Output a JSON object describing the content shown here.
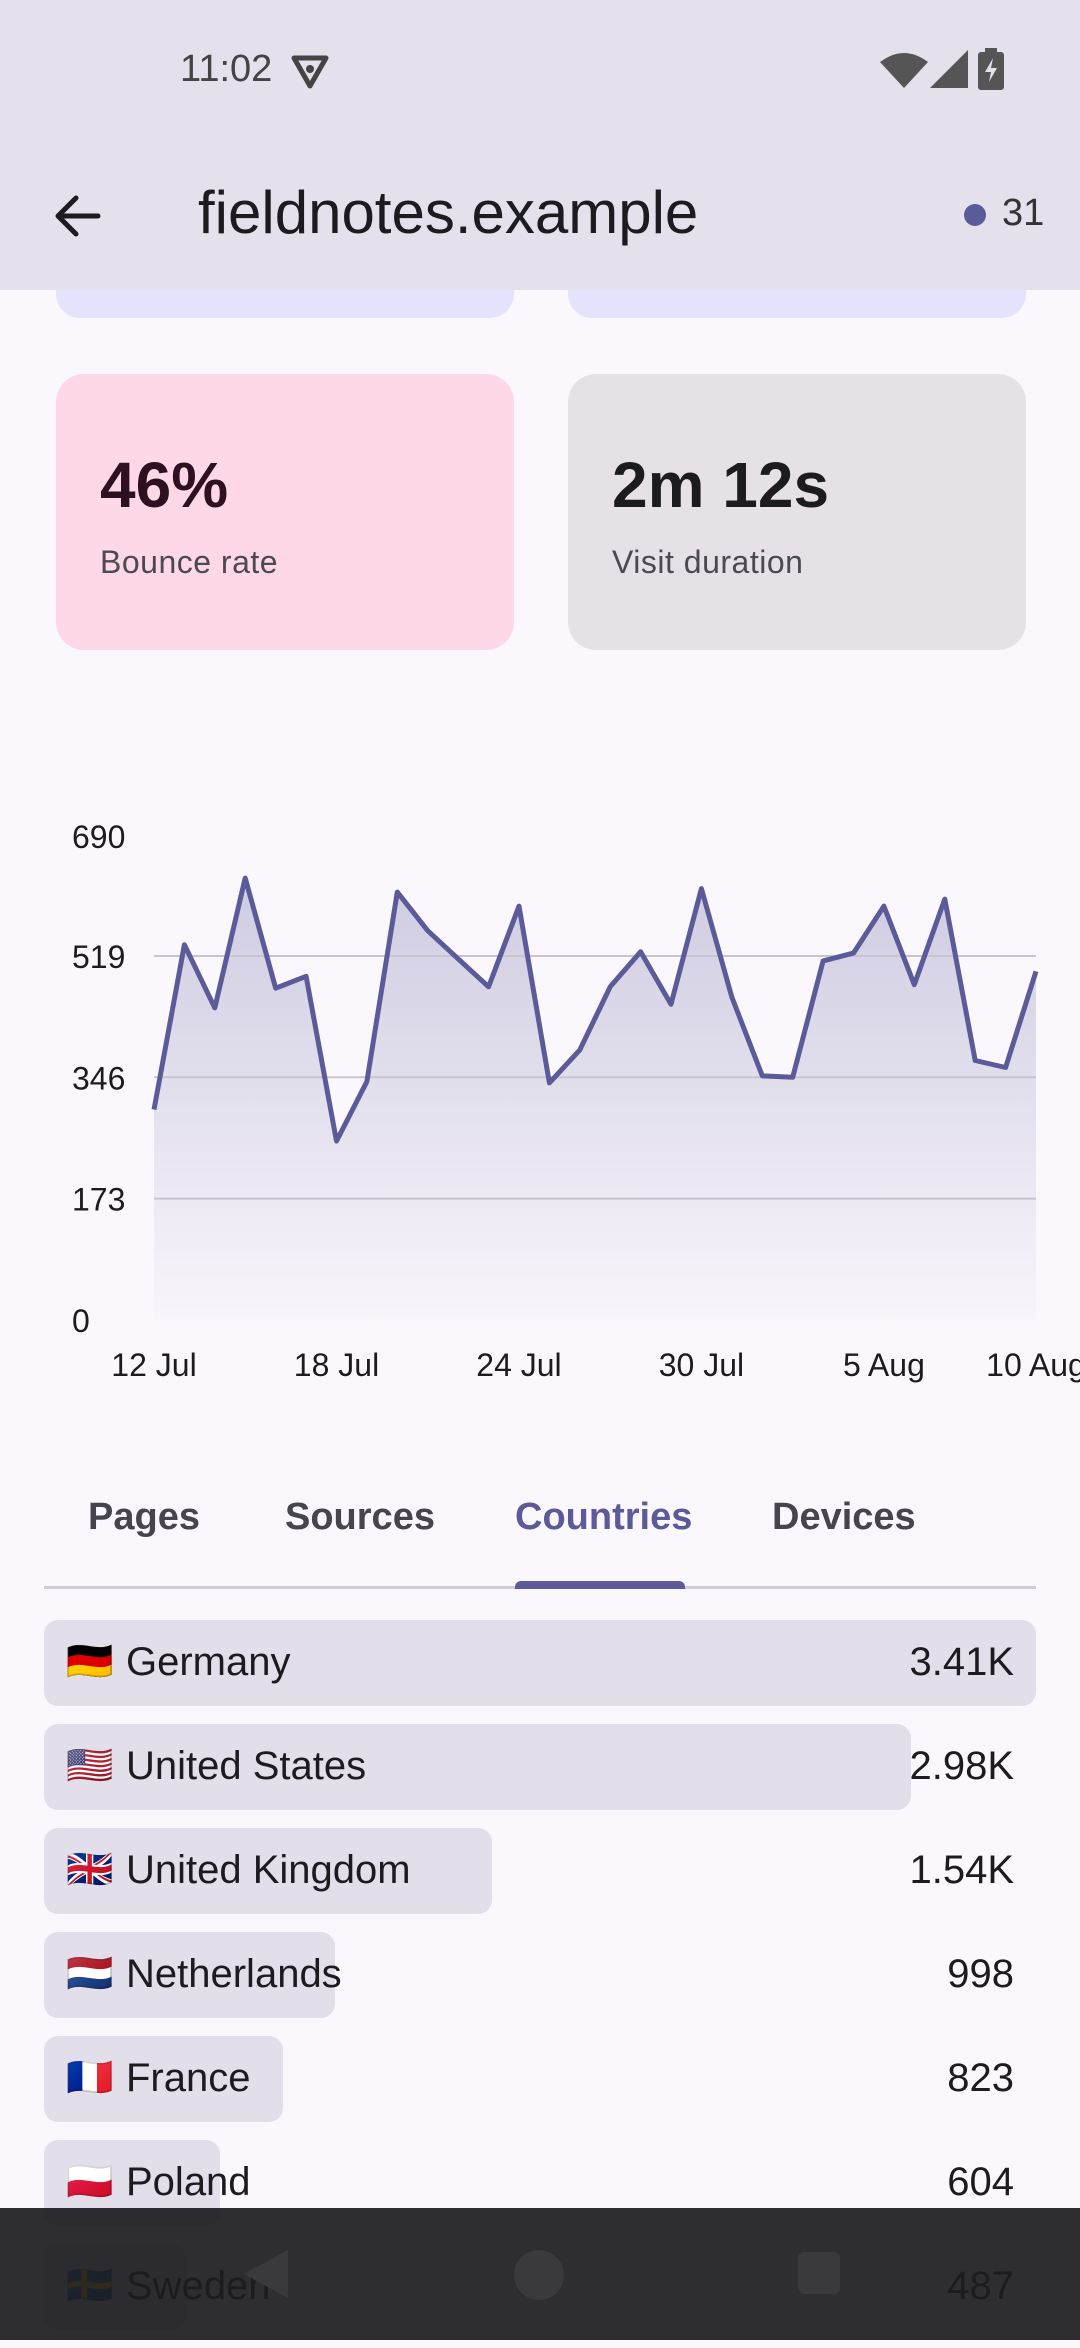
{
  "status_bar": {
    "time": "11:02"
  },
  "app_bar": {
    "title": "fieldnotes.example",
    "live_visitors": "31"
  },
  "stats": {
    "bounce": {
      "value": "46%",
      "label": "Bounce rate"
    },
    "duration": {
      "value": "2m 12s",
      "label": "Visit duration"
    }
  },
  "chart_data": {
    "type": "area",
    "x_tick_labels": [
      "12 Jul",
      "18 Jul",
      "24 Jul",
      "30 Jul",
      "5 Aug",
      "10 Aug"
    ],
    "y_tick_labels": [
      "690",
      "519",
      "346",
      "173",
      "0"
    ],
    "ylim": [
      0,
      690
    ],
    "y_ticks": [
      0,
      173,
      346,
      519,
      690
    ],
    "x": [
      "12 Jul",
      "13 Jul",
      "14 Jul",
      "15 Jul",
      "16 Jul",
      "17 Jul",
      "18 Jul",
      "19 Jul",
      "20 Jul",
      "21 Jul",
      "22 Jul",
      "23 Jul",
      "24 Jul",
      "25 Jul",
      "26 Jul",
      "27 Jul",
      "28 Jul",
      "29 Jul",
      "30 Jul",
      "31 Jul",
      "1 Aug",
      "2 Aug",
      "3 Aug",
      "4 Aug",
      "5 Aug",
      "6 Aug",
      "7 Aug",
      "8 Aug",
      "9 Aug",
      "10 Aug"
    ],
    "values": [
      300,
      535,
      445,
      630,
      473,
      490,
      255,
      340,
      610,
      555,
      515,
      475,
      590,
      338,
      385,
      475,
      525,
      450,
      615,
      460,
      348,
      346,
      512,
      523,
      590,
      478,
      600,
      370,
      360,
      497
    ],
    "grid": true,
    "color": "#5c5b99"
  },
  "tabs": [
    {
      "label": "Pages"
    },
    {
      "label": "Sources"
    },
    {
      "label": "Countries",
      "active": true
    },
    {
      "label": "Devices"
    }
  ],
  "countries": [
    {
      "flag": "🇩🇪",
      "name": "Germany",
      "value": "3.41K",
      "fraction": 1.0
    },
    {
      "flag": "🇺🇸",
      "name": "United States",
      "value": "2.98K",
      "fraction": 0.874
    },
    {
      "flag": "🇬🇧",
      "name": "United Kingdom",
      "value": "1.54K",
      "fraction": 0.452
    },
    {
      "flag": "🇳🇱",
      "name": "Netherlands",
      "value": "998",
      "fraction": 0.293
    },
    {
      "flag": "🇫🇷",
      "name": "France",
      "value": "823",
      "fraction": 0.241
    },
    {
      "flag": "🇵🇱",
      "name": "Poland",
      "value": "604",
      "fraction": 0.177
    },
    {
      "flag": "🇸🇪",
      "name": "Sweden",
      "value": "487",
      "fraction": 0.143
    }
  ]
}
